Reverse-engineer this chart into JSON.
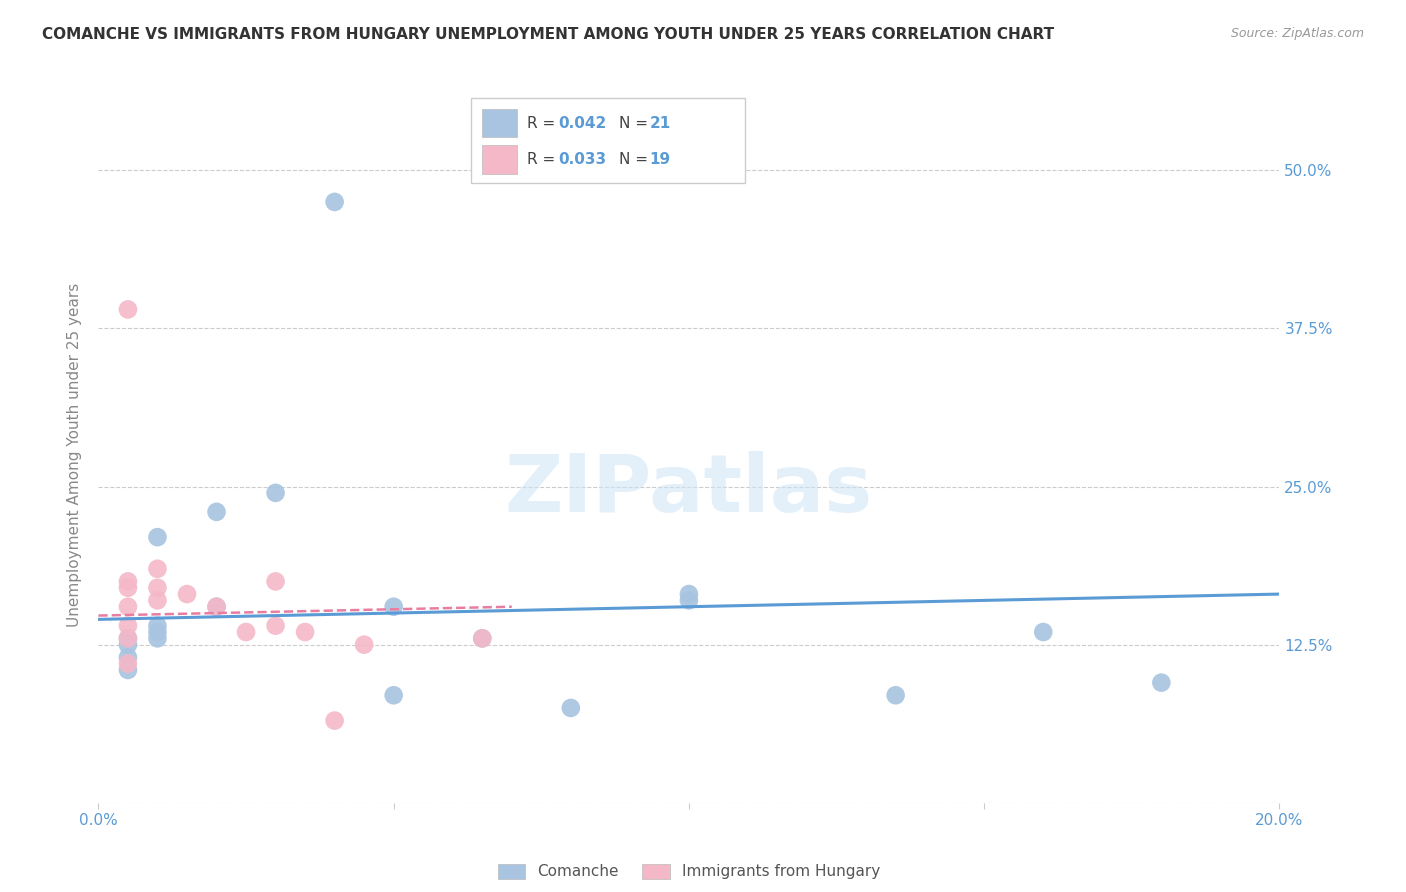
{
  "title": "COMANCHE VS IMMIGRANTS FROM HUNGARY UNEMPLOYMENT AMONG YOUTH UNDER 25 YEARS CORRELATION CHART",
  "source": "Source: ZipAtlas.com",
  "ylabel": "Unemployment Among Youth under 25 years",
  "ytick_values": [
    0.0,
    0.125,
    0.25,
    0.375,
    0.5
  ],
  "ytick_labels": [
    "",
    "12.5%",
    "25.0%",
    "37.5%",
    "50.0%"
  ],
  "xlim": [
    0.0,
    0.2
  ],
  "ylim": [
    0.0,
    0.55
  ],
  "legend_blue_r": "0.042",
  "legend_blue_n": "21",
  "legend_pink_r": "0.033",
  "legend_pink_n": "19",
  "legend_label_blue": "Comanche",
  "legend_label_pink": "Immigrants from Hungary",
  "blue_color": "#a8c4e0",
  "blue_line_color": "#5b9bd5",
  "pink_color": "#f4b8c8",
  "pink_line_color": "#e87da0",
  "watermark": "ZIPatlas",
  "blue_scatter_x": [
    0.04,
    0.01,
    0.02,
    0.02,
    0.01,
    0.01,
    0.01,
    0.005,
    0.005,
    0.005,
    0.005,
    0.03,
    0.05,
    0.05,
    0.065,
    0.08,
    0.1,
    0.1,
    0.135,
    0.16,
    0.18
  ],
  "blue_scatter_y": [
    0.475,
    0.21,
    0.23,
    0.155,
    0.14,
    0.135,
    0.13,
    0.13,
    0.125,
    0.115,
    0.105,
    0.245,
    0.155,
    0.085,
    0.13,
    0.075,
    0.16,
    0.165,
    0.085,
    0.135,
    0.095
  ],
  "pink_scatter_x": [
    0.005,
    0.005,
    0.005,
    0.005,
    0.005,
    0.005,
    0.005,
    0.01,
    0.01,
    0.01,
    0.015,
    0.02,
    0.025,
    0.03,
    0.03,
    0.035,
    0.04,
    0.045,
    0.065
  ],
  "pink_scatter_y": [
    0.39,
    0.175,
    0.17,
    0.155,
    0.14,
    0.13,
    0.11,
    0.185,
    0.17,
    0.16,
    0.165,
    0.155,
    0.135,
    0.175,
    0.14,
    0.135,
    0.065,
    0.125,
    0.13
  ],
  "blue_line_x": [
    0.0,
    0.2
  ],
  "blue_line_y": [
    0.145,
    0.165
  ],
  "pink_line_x": [
    0.0,
    0.07
  ],
  "pink_line_y": [
    0.148,
    0.155
  ],
  "background_color": "#ffffff",
  "grid_color": "#cccccc",
  "tick_color": "#5b9bd5",
  "title_color": "#333333",
  "source_color": "#999999",
  "ylabel_color": "#888888"
}
